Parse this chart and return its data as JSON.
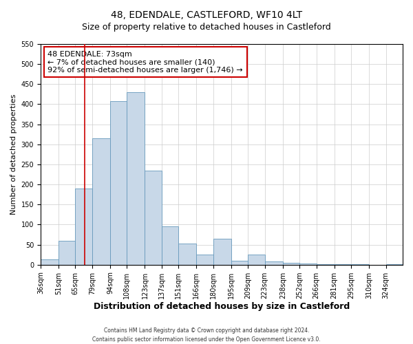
{
  "title": "48, EDENDALE, CASTLEFORD, WF10 4LT",
  "subtitle": "Size of property relative to detached houses in Castleford",
  "xlabel": "Distribution of detached houses by size in Castleford",
  "ylabel": "Number of detached properties",
  "footnote1": "Contains HM Land Registry data © Crown copyright and database right 2024.",
  "footnote2": "Contains public sector information licensed under the Open Government Licence v3.0.",
  "annotation_line1": "48 EDENDALE: 73sqm",
  "annotation_line2": "← 7% of detached houses are smaller (140)",
  "annotation_line3": "92% of semi-detached houses are larger (1,746) →",
  "bar_color": "#c8d8e8",
  "bar_edge_color": "#6699bb",
  "vline_color": "#cc0000",
  "vline_x": 73,
  "categories": [
    "36sqm",
    "51sqm",
    "65sqm",
    "79sqm",
    "94sqm",
    "108sqm",
    "123sqm",
    "137sqm",
    "151sqm",
    "166sqm",
    "180sqm",
    "195sqm",
    "209sqm",
    "223sqm",
    "238sqm",
    "252sqm",
    "266sqm",
    "281sqm",
    "295sqm",
    "310sqm",
    "324sqm"
  ],
  "bin_edges": [
    36,
    51,
    65,
    79,
    94,
    108,
    123,
    137,
    151,
    166,
    180,
    195,
    209,
    223,
    238,
    252,
    266,
    281,
    295,
    310,
    324,
    338
  ],
  "values": [
    13,
    60,
    190,
    315,
    408,
    430,
    235,
    95,
    52,
    25,
    65,
    10,
    25,
    8,
    5,
    3,
    2,
    1,
    1,
    0,
    1
  ],
  "ylim": [
    0,
    550
  ],
  "yticks": [
    0,
    50,
    100,
    150,
    200,
    250,
    300,
    350,
    400,
    450,
    500,
    550
  ],
  "annotation_box_color": "#ffffff",
  "annotation_box_edge": "#cc0000",
  "title_fontsize": 10,
  "subtitle_fontsize": 9,
  "xlabel_fontsize": 9,
  "ylabel_fontsize": 8,
  "tick_fontsize": 7,
  "annotation_fontsize": 8,
  "footnote_fontsize": 5.5
}
